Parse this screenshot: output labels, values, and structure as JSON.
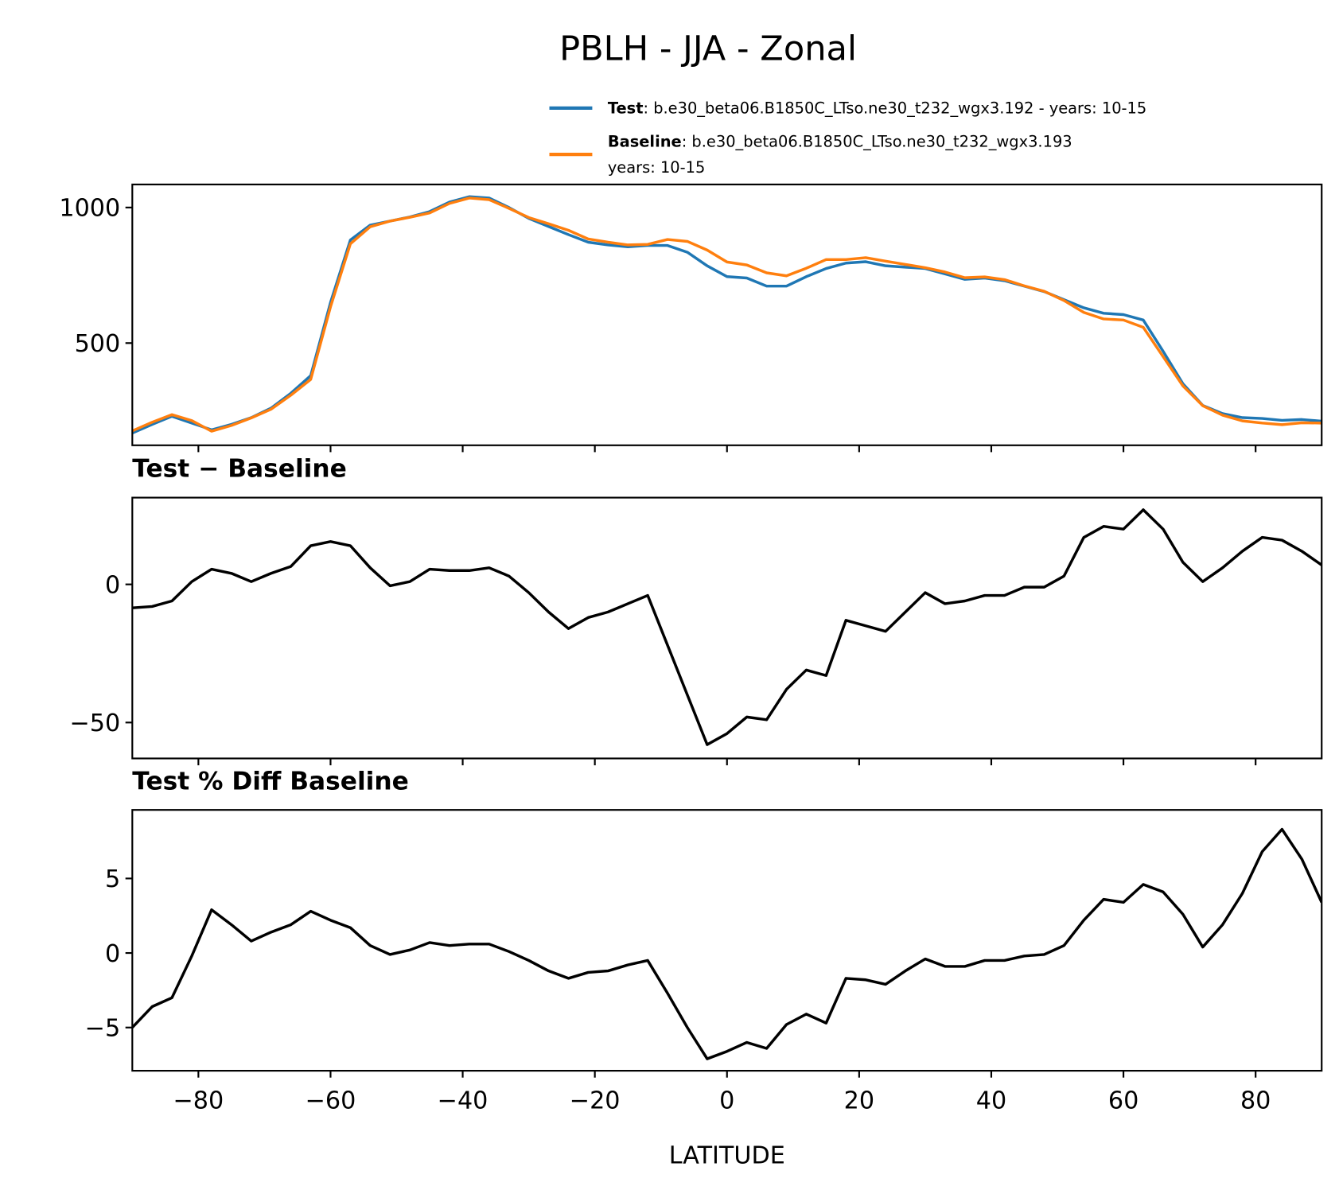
{
  "title": "PBLH - JJA - Zonal",
  "chart_data": [
    {
      "type": "line",
      "x": [
        -90,
        -87,
        -84,
        -81,
        -78,
        -75,
        -72,
        -69,
        -66,
        -63,
        -60,
        -57,
        -54,
        -51,
        -48,
        -45,
        -42,
        -39,
        -36,
        -33,
        -30,
        -27,
        -24,
        -21,
        -18,
        -15,
        -12,
        -9,
        -6,
        -3,
        0,
        3,
        6,
        9,
        12,
        15,
        18,
        21,
        24,
        27,
        30,
        33,
        36,
        39,
        42,
        45,
        48,
        51,
        54,
        57,
        60,
        63,
        66,
        69,
        72,
        75,
        78,
        81,
        84,
        87,
        90
      ],
      "series": [
        {
          "name": "Test",
          "description": [
            ": b.e30_beta06.B1850C_LTso.ne30_t232_wgx3.192 - years: 10-15"
          ],
          "color": "#1f77b4",
          "values": [
            168,
            200,
            230,
            205,
            180,
            200,
            225,
            260,
            315,
            380,
            650,
            880,
            935,
            950,
            965,
            985,
            1020,
            1040,
            1035,
            1000,
            960,
            930,
            900,
            872,
            862,
            855,
            860,
            860,
            835,
            785,
            745,
            740,
            710,
            710,
            745,
            775,
            795,
            800,
            785,
            780,
            775,
            755,
            735,
            740,
            730,
            710,
            690,
            660,
            630,
            610,
            605,
            585,
            470,
            350,
            270,
            240,
            225,
            222,
            215,
            218,
            212
          ]
        },
        {
          "name": "Baseline",
          "description": [
            ": b.e30_beta06.B1850C_LTso.ne30_t232_wgx3.193",
            "years: 10-15"
          ],
          "color": "#ff7f0e",
          "values": [
            176,
            208,
            236,
            214,
            175,
            196,
            224,
            256,
            308,
            366,
            634,
            866,
            929,
            950,
            964,
            980,
            1015,
            1035,
            1029,
            997,
            963,
            940,
            916,
            884,
            872,
            862,
            864,
            882,
            875,
            843,
            799,
            788,
            759,
            748,
            776,
            808,
            808,
            815,
            802,
            790,
            778,
            762,
            741,
            744,
            734,
            711,
            691,
            657,
            613,
            589,
            585,
            558,
            450,
            342,
            269,
            234,
            213,
            205,
            199,
            206,
            205
          ]
        }
      ],
      "xlim": [
        -90,
        90
      ],
      "xticks": [
        -80,
        -60,
        -40,
        -20,
        0,
        20,
        40,
        60,
        80
      ],
      "ylim": [
        123,
        1085
      ],
      "yticks": [
        500,
        1000
      ]
    },
    {
      "type": "line",
      "title": "Test − Baseline",
      "color": "#000000",
      "x": [
        -90,
        -87,
        -84,
        -81,
        -78,
        -75,
        -72,
        -69,
        -66,
        -63,
        -60,
        -57,
        -54,
        -51,
        -48,
        -45,
        -42,
        -39,
        -36,
        -33,
        -30,
        -27,
        -24,
        -21,
        -18,
        -15,
        -12,
        -9,
        -6,
        -3,
        0,
        3,
        6,
        9,
        12,
        15,
        18,
        21,
        24,
        27,
        30,
        33,
        36,
        39,
        42,
        45,
        48,
        51,
        54,
        57,
        60,
        63,
        66,
        69,
        72,
        75,
        78,
        81,
        84,
        87,
        90
      ],
      "values": [
        -8.5,
        -8,
        -6,
        1,
        5.5,
        4,
        1,
        4,
        6.5,
        14,
        15.5,
        14,
        6,
        -0.5,
        1,
        5.5,
        5,
        5,
        6,
        3,
        -3,
        -10,
        -16,
        -12,
        -10,
        -7,
        -4,
        -22,
        -40,
        -58,
        -54,
        -48,
        -49,
        -38,
        -31,
        -33,
        -13,
        -15,
        -17,
        -10,
        -3,
        -7,
        -6,
        -4,
        -4,
        -1,
        -1,
        3,
        17,
        21,
        20,
        27,
        20,
        8,
        1,
        6,
        12,
        17,
        16,
        12,
        7
      ],
      "xlim": [
        -90,
        90
      ],
      "xticks": [
        -80,
        -60,
        -40,
        -20,
        0,
        20,
        40,
        60,
        80
      ],
      "ylim": [
        -63,
        31.4
      ],
      "yticks": [
        {
          "value": -50,
          "label": "−50"
        },
        0
      ]
    },
    {
      "type": "line",
      "title": "Test % Diff Baseline",
      "xlabel": "LATITUDE",
      "color": "#000000",
      "x": [
        -90,
        -87,
        -84,
        -81,
        -78,
        -75,
        -72,
        -69,
        -66,
        -63,
        -60,
        -57,
        -54,
        -51,
        -48,
        -45,
        -42,
        -39,
        -36,
        -33,
        -30,
        -27,
        -24,
        -21,
        -18,
        -15,
        -12,
        -9,
        -6,
        -3,
        0,
        3,
        6,
        9,
        12,
        15,
        18,
        21,
        24,
        27,
        30,
        33,
        36,
        39,
        42,
        45,
        48,
        51,
        54,
        57,
        60,
        63,
        66,
        69,
        72,
        75,
        78,
        81,
        84,
        87,
        90
      ],
      "values": [
        -5,
        -3.6,
        -3,
        -0.2,
        2.9,
        1.9,
        0.8,
        1.4,
        1.9,
        2.8,
        2.2,
        1.7,
        0.5,
        -0.1,
        0.2,
        0.7,
        0.5,
        0.6,
        0.6,
        0.1,
        -0.5,
        -1.2,
        -1.7,
        -1.3,
        -1.2,
        -0.8,
        -0.5,
        -2.7,
        -5,
        -7.1,
        -6.6,
        -6,
        -6.4,
        -4.8,
        -4.1,
        -4.7,
        -1.7,
        -1.8,
        -2.1,
        -1.2,
        -0.4,
        -0.9,
        -0.9,
        -0.5,
        -0.5,
        -0.2,
        -0.1,
        0.5,
        2.2,
        3.6,
        3.4,
        4.6,
        4.1,
        2.6,
        0.4,
        1.9,
        4,
        6.8,
        8.3,
        6.3,
        3.4
      ],
      "xlim": [
        -90,
        90
      ],
      "xticks": [
        {
          "value": -80,
          "label": "−80"
        },
        {
          "value": -60,
          "label": "−60"
        },
        {
          "value": -40,
          "label": "−40"
        },
        {
          "value": -20,
          "label": "−20"
        },
        0,
        20,
        40,
        60,
        80
      ],
      "ylim": [
        -7.9,
        9.6
      ],
      "yticks": [
        {
          "value": -5,
          "label": "−5"
        },
        0,
        5
      ]
    }
  ]
}
